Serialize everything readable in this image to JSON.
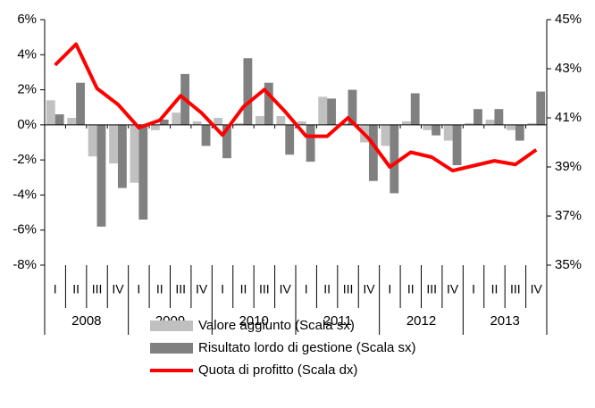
{
  "chart_data": {
    "type": "bar-line",
    "categories": [
      "I",
      "II",
      "III",
      "IV",
      "I",
      "II",
      "III",
      "IV",
      "I",
      "II",
      "III",
      "IV",
      "I",
      "II",
      "III",
      "IV",
      "I",
      "II",
      "III",
      "IV",
      "I",
      "II",
      "III",
      "IV"
    ],
    "years": [
      "2008",
      "2009",
      "2010",
      "2011",
      "2012",
      "2013"
    ],
    "series": [
      {
        "name": "Valore aggiunto (Scala sx)",
        "type": "bar",
        "color": "#c0c0c0",
        "values": [
          1.4,
          0.4,
          -1.8,
          -2.2,
          -3.3,
          -0.3,
          0.7,
          0.2,
          0.4,
          0.1,
          0.5,
          0.5,
          0.2,
          1.6,
          0.1,
          -1.0,
          -1.2,
          0.2,
          -0.3,
          -0.9,
          0.1,
          0.3,
          -0.3,
          0.1
        ]
      },
      {
        "name": "Risultato lordo di gestione (Scala sx)",
        "type": "bar",
        "color": "#808080",
        "values": [
          0.6,
          2.4,
          -5.8,
          -3.6,
          -5.4,
          0.3,
          2.9,
          -1.2,
          -1.9,
          3.8,
          2.4,
          -1.7,
          -2.1,
          1.5,
          2.0,
          -3.2,
          -3.9,
          1.8,
          -0.6,
          -2.3,
          0.9,
          0.9,
          -0.9,
          1.9
        ]
      },
      {
        "name": "Quota di profitto (Scala dx)",
        "type": "line",
        "axis": "y2",
        "color": "#ff0000",
        "values": [
          43.15,
          44.0,
          42.2,
          41.55,
          40.6,
          40.9,
          41.9,
          41.2,
          40.3,
          41.45,
          42.15,
          41.25,
          40.25,
          40.25,
          41.0,
          40.15,
          39.0,
          39.6,
          39.4,
          38.85,
          39.05,
          39.25,
          39.1,
          39.7
        ]
      }
    ],
    "ylim": [
      -8,
      6
    ],
    "yticks": [
      {
        "value": -8,
        "label": "-8%"
      },
      {
        "value": -6,
        "label": "-6%"
      },
      {
        "value": -4,
        "label": "-4%"
      },
      {
        "value": -2,
        "label": "-2%"
      },
      {
        "value": 0,
        "label": "0%"
      },
      {
        "value": 2,
        "label": "2%"
      },
      {
        "value": 4,
        "label": "4%"
      },
      {
        "value": 6,
        "label": "6%"
      }
    ],
    "y2lim": [
      35,
      45
    ],
    "y2ticks": [
      {
        "value": 35,
        "label": "35%"
      },
      {
        "value": 37,
        "label": "37%"
      },
      {
        "value": 39,
        "label": "39%"
      },
      {
        "value": 41,
        "label": "41%"
      },
      {
        "value": 43,
        "label": "43%"
      },
      {
        "value": 45,
        "label": "45%"
      }
    ],
    "grid": false,
    "legend": "bottom"
  }
}
